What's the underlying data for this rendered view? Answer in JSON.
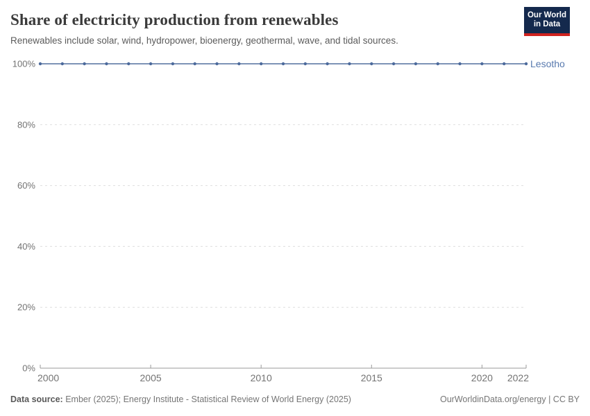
{
  "header": {
    "title": "Share of electricity production from renewables",
    "subtitle": "Renewables include solar, wind, hydropower, bioenergy, geothermal, wave, and tidal sources.",
    "logo": {
      "line1": "Our World",
      "line2": "in Data"
    }
  },
  "chart_data": {
    "type": "line",
    "title": "Share of electricity production from renewables",
    "x": [
      2000,
      2001,
      2002,
      2003,
      2004,
      2005,
      2006,
      2007,
      2008,
      2009,
      2010,
      2011,
      2012,
      2013,
      2014,
      2015,
      2016,
      2017,
      2018,
      2019,
      2020,
      2021,
      2022
    ],
    "series": [
      {
        "name": "Lesotho",
        "values": [
          100,
          100,
          100,
          100,
          100,
          100,
          100,
          100,
          100,
          100,
          100,
          100,
          100,
          100,
          100,
          100,
          100,
          100,
          100,
          100,
          100,
          100,
          100
        ]
      }
    ],
    "xlim": [
      2000,
      2022
    ],
    "ylim": [
      0,
      100
    ],
    "yticks": [
      0,
      20,
      40,
      60,
      80,
      100
    ],
    "ytick_labels": [
      "0%",
      "20%",
      "40%",
      "60%",
      "80%",
      "100%"
    ],
    "xticks": [
      2000,
      2005,
      2010,
      2015,
      2020,
      2022
    ],
    "xtick_labels": [
      "2000",
      "2005",
      "2010",
      "2015",
      "2020",
      "2022"
    ],
    "grid": "dashed-horizontal",
    "legend": "entity-label-right",
    "ylabel": "",
    "xlabel": ""
  },
  "footer": {
    "source_label": "Data source:",
    "source_text": "Ember (2025); Energy Institute - Statistical Review of World Energy (2025)",
    "credit": "OurWorldinData.org/energy | CC BY"
  },
  "colors": {
    "series_line": "#7d93b6",
    "series_point": "#4c6a9c",
    "entity_label": "#5879ae",
    "grid": "#dedede",
    "axis": "#9a9a9a",
    "tick_label": "#737373",
    "logo_bg": "#14294d",
    "logo_accent": "#d0231f"
  }
}
